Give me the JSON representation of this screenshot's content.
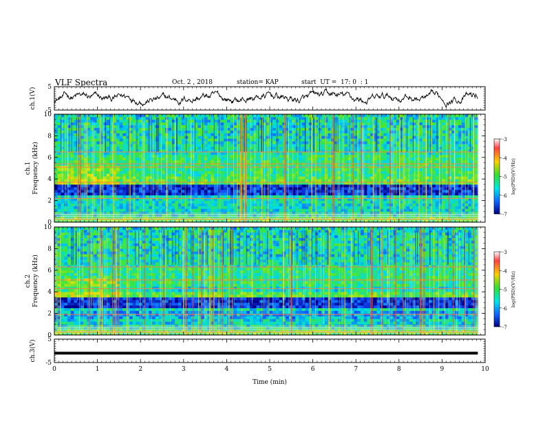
{
  "header": {
    "title": "VLF Spectra",
    "date": "Oct. 2 , 2018",
    "station": "station= KAP",
    "start": "start  UT =  17: 0  : 1"
  },
  "chart_data": [
    {
      "type": "line",
      "id": "ch1-waveform",
      "ylabel": "ch.1(V)",
      "ylim": [
        -5,
        5
      ],
      "yticks": [
        5,
        -5
      ],
      "xlim": [
        0,
        10
      ]
    },
    {
      "type": "heatmap",
      "id": "ch1-spectrogram",
      "ylabel": "ch.1\nFrequency (kHz)",
      "ylabel_lines": [
        "ch.1",
        "Frequency  (kHz)"
      ],
      "ylim": [
        0,
        10
      ],
      "yticks": [
        0,
        2,
        4,
        6,
        8,
        10
      ],
      "xlim": [
        0,
        9.83
      ],
      "colorbar": {
        "label": "log(PSD)(V²/Hz)",
        "ticks": [
          -3,
          -4,
          -5,
          -6,
          -7
        ],
        "range": [
          -7,
          -3
        ]
      },
      "bands_khz": [
        0.3,
        2.2,
        3.7,
        5.1,
        5.4,
        6.5
      ]
    },
    {
      "type": "heatmap",
      "id": "ch2-spectrogram",
      "ylabel": "ch.2\nFrequency (kHz)",
      "ylabel_lines": [
        "ch.2",
        "Frequency  (kHz)"
      ],
      "ylim": [
        0,
        10
      ],
      "yticks": [
        0,
        2,
        4,
        6,
        8,
        10
      ],
      "xlim": [
        0,
        9.83
      ],
      "colorbar": {
        "label": "log(PSD)(V²/Hz)",
        "ticks": [
          -3,
          -4,
          -5,
          -6,
          -7
        ],
        "range": [
          -7,
          -3
        ]
      },
      "bands_khz": [
        0.3,
        1.9,
        4.3,
        5.1,
        6.3
      ]
    },
    {
      "type": "line",
      "id": "ch3-waveform",
      "ylabel": "ch.3(V)",
      "ylim": [
        -5,
        5
      ],
      "yticks": [
        5,
        -5
      ],
      "xlim": [
        0,
        10
      ],
      "constant_value": -1
    }
  ],
  "xaxis": {
    "label": "Time  (min)",
    "ticks": [
      0,
      1,
      2,
      3,
      4,
      5,
      6,
      7,
      8,
      9,
      10
    ]
  }
}
